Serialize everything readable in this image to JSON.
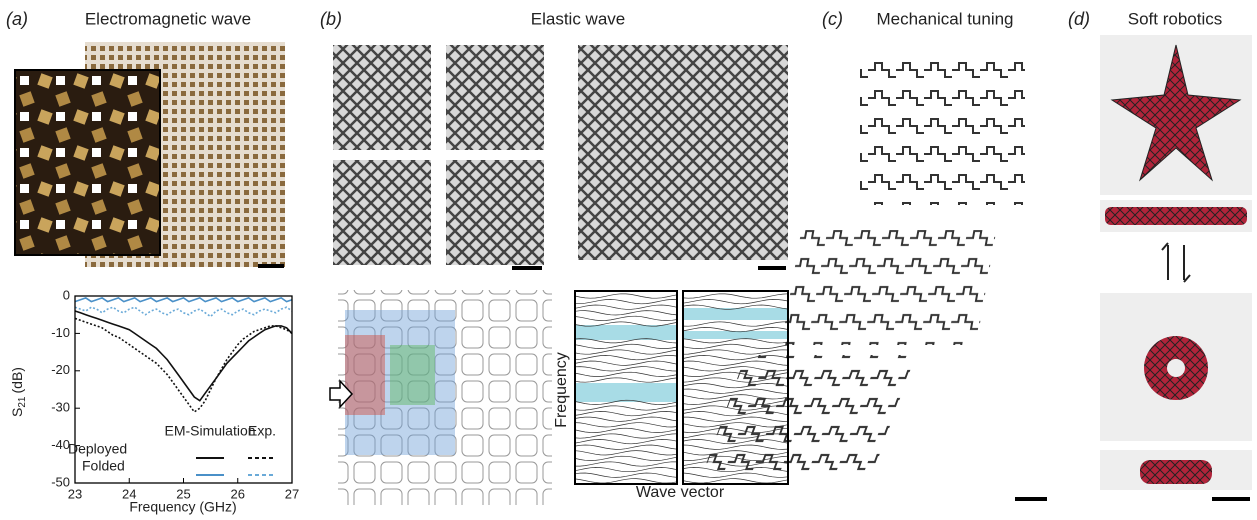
{
  "panels": [
    {
      "letter": "(a)",
      "title": "Electromagnetic wave"
    },
    {
      "letter": "(b)",
      "title": "Elastic wave"
    },
    {
      "letter": "(c)",
      "title": "Mechanical tuning"
    },
    {
      "letter": "(d)",
      "title": "Soft robotics"
    }
  ],
  "band_diagram": {
    "xlabel": "Wave vector",
    "ylabel": "Frequency"
  },
  "chart_data": {
    "type": "line",
    "xlabel": "Frequency (GHz)",
    "ylabel": {
      "main": "S",
      "sub": "21",
      "unit": "(dB)"
    },
    "xlim": [
      23,
      27
    ],
    "xticks": [
      23,
      24,
      25,
      26,
      27
    ],
    "ylim": [
      -50,
      0
    ],
    "yticks": [
      0,
      -10,
      -20,
      -30,
      -40,
      -50
    ],
    "legend": {
      "columns": [
        "EM-Simulation",
        "Exp."
      ],
      "rows": [
        "Deployed",
        "Folded"
      ]
    },
    "x": [
      23,
      23.1,
      23.2,
      23.3,
      23.4,
      23.5,
      23.6,
      23.7,
      23.8,
      23.9,
      24,
      24.1,
      24.2,
      24.3,
      24.4,
      24.5,
      24.6,
      24.7,
      24.8,
      24.9,
      25,
      25.1,
      25.2,
      25.3,
      25.4,
      25.5,
      25.6,
      25.7,
      25.8,
      25.9,
      26,
      26.1,
      26.2,
      26.3,
      26.4,
      26.5,
      26.6,
      26.7,
      26.8,
      26.9,
      27
    ],
    "series": [
      {
        "row": 0,
        "column": 0,
        "color": "#111111",
        "dashed": false,
        "values": [
          -4,
          -4.5,
          -5,
          -5.5,
          -6,
          -6.5,
          -7,
          -7.5,
          -8,
          -8.5,
          -9,
          -10,
          -11,
          -12,
          -13,
          -14,
          -15.5,
          -17,
          -19,
          -21,
          -23,
          -25,
          -27,
          -28,
          -26,
          -24,
          -22,
          -20,
          -18,
          -16.5,
          -15,
          -13.5,
          -12,
          -11,
          -10,
          -9,
          -8.5,
          -8,
          -8,
          -8.5,
          -10
        ]
      },
      {
        "row": 0,
        "column": 1,
        "color": "#111111",
        "dashed": true,
        "values": [
          -6,
          -6.5,
          -7,
          -7.5,
          -8,
          -8.5,
          -9.5,
          -10.5,
          -11,
          -12,
          -13,
          -14,
          -15,
          -16,
          -17,
          -18,
          -19.5,
          -21,
          -23,
          -25,
          -27,
          -29,
          -31,
          -30,
          -28,
          -25,
          -22,
          -19.5,
          -17,
          -15,
          -13,
          -11.5,
          -10.5,
          -9.5,
          -9,
          -8.5,
          -8,
          -8,
          -8.5,
          -9,
          -10
        ]
      },
      {
        "row": 1,
        "column": 0,
        "color": "#4a90c8",
        "dashed": false,
        "values": [
          -1.5,
          -1,
          -0.5,
          -1.5,
          -1,
          -0.5,
          -1.5,
          -1,
          -0.5,
          -1.5,
          -1,
          -0.5,
          -1.5,
          -1,
          -0.5,
          -1.5,
          -1,
          -0.5,
          -1.5,
          -1,
          -0.5,
          -1.5,
          -1,
          -0.5,
          -1.5,
          -1,
          -0.5,
          -1.5,
          -1,
          -0.5,
          -1.5,
          -1,
          -0.5,
          -1.5,
          -1,
          -0.5,
          -1.5,
          -1,
          -0.5,
          -1.5,
          -1
        ]
      },
      {
        "row": 1,
        "column": 1,
        "color": "#6aaad8",
        "dashed": true,
        "values": [
          -3,
          -3.5,
          -4,
          -3,
          -3.5,
          -4.5,
          -3.5,
          -3,
          -4,
          -4.5,
          -3.5,
          -3,
          -4,
          -5,
          -4,
          -3.5,
          -4.5,
          -5,
          -4,
          -3.5,
          -4.5,
          -5,
          -4,
          -3.5,
          -4.5,
          -5.5,
          -4,
          -3.5,
          -4.5,
          -5,
          -4,
          -3.5,
          -4.5,
          -5,
          -4,
          -3.5,
          -4,
          -4.5,
          -3.5,
          -3,
          -4
        ]
      }
    ]
  }
}
